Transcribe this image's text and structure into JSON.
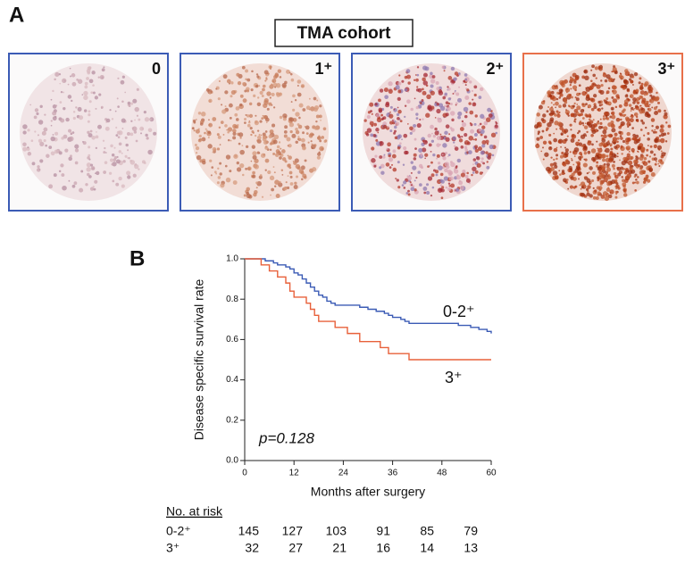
{
  "panel_a": {
    "label": "A",
    "title": "TMA cohort",
    "images": [
      {
        "label": "0"
      },
      {
        "label": "1⁺"
      },
      {
        "label": "2⁺"
      },
      {
        "label": "3⁺"
      }
    ]
  },
  "panel_b_label": "B",
  "chart_data": {
    "type": "step",
    "xlabel": "Months after surgery",
    "ylabel": "Disease specific survival rate",
    "annotation": "p=0.128",
    "xlim": [
      0,
      60
    ],
    "ylim": [
      0,
      1
    ],
    "xticks": [
      0,
      12,
      24,
      36,
      48,
      60
    ],
    "yticks": [
      {
        "value": 0,
        "label": "0.0"
      },
      {
        "value": 0.2,
        "label": "0.2"
      },
      {
        "value": 0.4,
        "label": "0.4"
      },
      {
        "value": 0.6,
        "label": "0.6"
      },
      {
        "value": 0.8,
        "label": "0.8"
      },
      {
        "value": 1,
        "label": "1.0"
      }
    ],
    "series": [
      {
        "name": "0-2⁺",
        "color": "#3b5bb5",
        "x": [
          0,
          5,
          7,
          8,
          10,
          11,
          12,
          13,
          14,
          15,
          16,
          17,
          18,
          19,
          20,
          21,
          22,
          28,
          30,
          32,
          34,
          35,
          36,
          38,
          39,
          40,
          52,
          55,
          57,
          59,
          60
        ],
        "values": [
          1.0,
          0.99,
          0.98,
          0.97,
          0.96,
          0.95,
          0.93,
          0.92,
          0.9,
          0.88,
          0.86,
          0.84,
          0.82,
          0.81,
          0.79,
          0.78,
          0.77,
          0.76,
          0.75,
          0.74,
          0.73,
          0.72,
          0.71,
          0.7,
          0.69,
          0.68,
          0.67,
          0.66,
          0.65,
          0.64,
          0.63
        ]
      },
      {
        "name": "3⁺",
        "color": "#e8603a",
        "x": [
          0,
          4,
          6,
          8,
          10,
          11,
          12,
          15,
          16,
          17,
          18,
          22,
          25,
          28,
          33,
          35,
          40,
          60
        ],
        "values": [
          1.0,
          0.97,
          0.94,
          0.91,
          0.88,
          0.84,
          0.81,
          0.78,
          0.75,
          0.72,
          0.69,
          0.66,
          0.63,
          0.59,
          0.56,
          0.53,
          0.5,
          0.5
        ]
      }
    ]
  },
  "risk_table": {
    "title": "No. at risk",
    "rows": [
      {
        "label": "0-2⁺",
        "values": [
          "145",
          "127",
          "103",
          "91",
          "85",
          "79"
        ]
      },
      {
        "label": "3⁺",
        "values": [
          "32",
          "27",
          "21",
          "16",
          "14",
          "13"
        ]
      }
    ]
  }
}
